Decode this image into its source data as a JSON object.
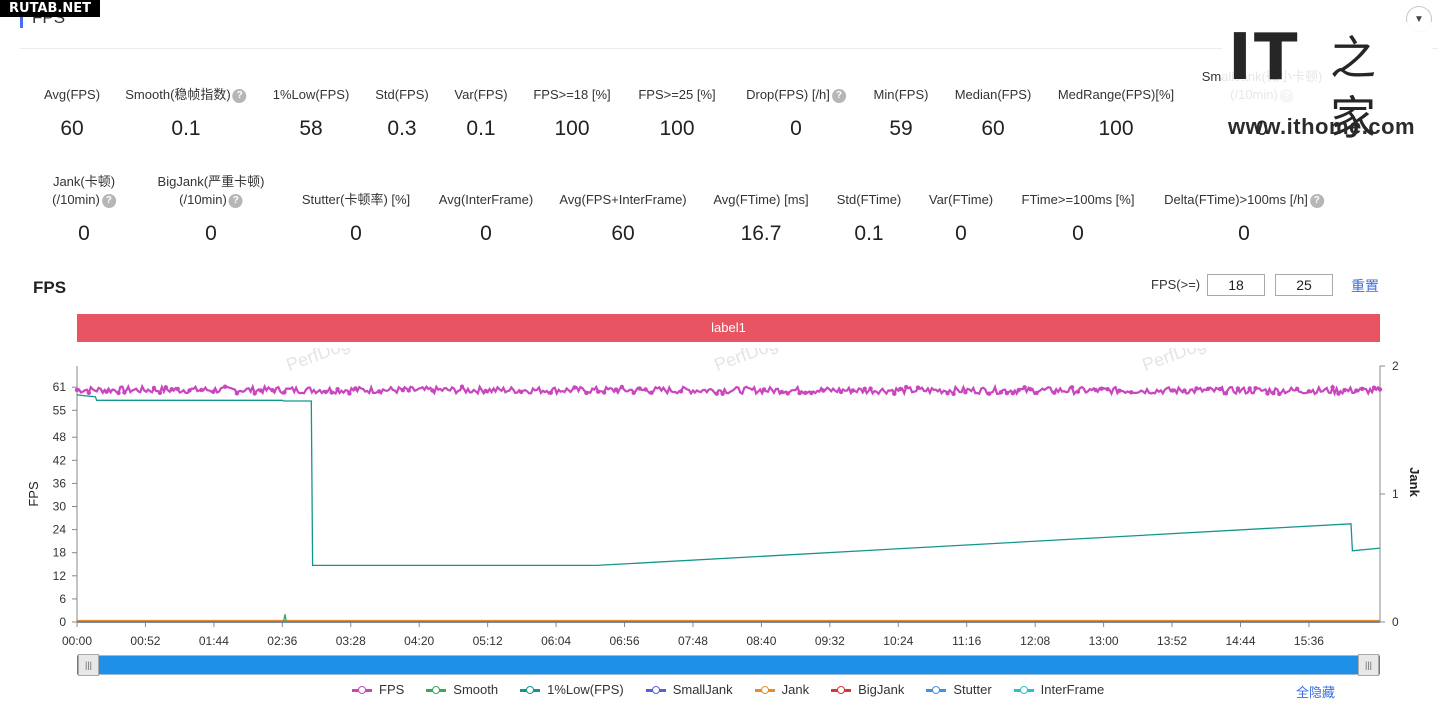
{
  "site_watermark": "RUTAB.NET",
  "section_title": "FPS",
  "logo": {
    "it": "IT",
    "hand": "之家",
    "url": "www.ithome.com"
  },
  "metrics_row1": [
    {
      "label": "Avg(FPS)",
      "value": "60",
      "help": false
    },
    {
      "label": "Smooth(稳帧指数)",
      "value": "0.1",
      "help": true
    },
    {
      "label": "1%Low(FPS)",
      "value": "58",
      "help": false
    },
    {
      "label": "Std(FPS)",
      "value": "0.3",
      "help": false
    },
    {
      "label": "Var(FPS)",
      "value": "0.1",
      "help": false
    },
    {
      "label": "FPS>=18 [%]",
      "value": "100",
      "help": false
    },
    {
      "label": "FPS>=25 [%]",
      "value": "100",
      "help": false
    },
    {
      "label": "Drop(FPS) [/h]",
      "value": "0",
      "help": true
    },
    {
      "label": "Min(FPS)",
      "value": "59",
      "help": false
    },
    {
      "label": "Median(FPS)",
      "value": "60",
      "help": false
    },
    {
      "label": "MedRange(FPS)[%]",
      "value": "100",
      "help": false
    },
    {
      "label": "SmallJank(微小卡顿)",
      "label2": "(/10min)",
      "value": "0",
      "help": true
    }
  ],
  "metrics_row2": [
    {
      "label": "Jank(卡顿)",
      "label2": "(/10min)",
      "value": "0",
      "help": true
    },
    {
      "label": "BigJank(严重卡顿)",
      "label2": "(/10min)",
      "value": "0",
      "help": true
    },
    {
      "label": "Stutter(卡顿率) [%]",
      "value": "0",
      "help": false
    },
    {
      "label": "Avg(InterFrame)",
      "value": "0",
      "help": false
    },
    {
      "label": "Avg(FPS+InterFrame)",
      "value": "60",
      "help": false
    },
    {
      "label": "Avg(FTime) [ms]",
      "value": "16.7",
      "help": false
    },
    {
      "label": "Std(FTime)",
      "value": "0.1",
      "help": false
    },
    {
      "label": "Var(FTime)",
      "value": "0",
      "help": false
    },
    {
      "label": "FTime>=100ms [%]",
      "value": "0",
      "help": false
    },
    {
      "label": "Delta(FTime)>100ms [/h]",
      "value": "0",
      "help": true
    }
  ],
  "chart_header": {
    "title": "FPS",
    "threshold_label": "FPS(>=)",
    "threshold_1": "18",
    "threshold_2": "25",
    "reset": "重置"
  },
  "label_bar": "label1",
  "hide_all": "全隐藏",
  "chart_data": {
    "type": "line",
    "xlabel": "",
    "ylabel": "FPS",
    "y2label": "Jank",
    "ylim": [
      0,
      66.5
    ],
    "y2lim": [
      0,
      2
    ],
    "ytick_labels": [
      "0",
      "6",
      "12",
      "18",
      "24",
      "30",
      "36",
      "42",
      "48",
      "55",
      "61"
    ],
    "y2tick_labels": [
      "0",
      "1",
      "2"
    ],
    "x_tick_labels": [
      "00:00",
      "00:52",
      "01:44",
      "02:36",
      "03:28",
      "04:20",
      "05:12",
      "06:04",
      "06:56",
      "07:48",
      "08:40",
      "09:32",
      "10:24",
      "11:16",
      "12:08",
      "13:00",
      "13:52",
      "14:44",
      "15:36"
    ],
    "x_max_seconds": 990,
    "watermark": "PerfDog",
    "series": [
      {
        "name": "FPS",
        "color": "#c946bf",
        "axis": "left",
        "points": [
          [
            0,
            60.3
          ],
          [
            990,
            60.1
          ]
        ],
        "noisy": true,
        "noise": 0.9
      },
      {
        "name": "Smooth",
        "color": "#3aa858",
        "axis": "left",
        "points": [
          [
            0,
            0.1
          ],
          [
            157,
            0.1
          ],
          [
            158,
            2
          ],
          [
            159,
            0.1
          ],
          [
            990,
            0.1
          ]
        ]
      },
      {
        "name": "1%Low(FPS)",
        "color": "#13968c",
        "axis": "left",
        "points": [
          [
            0,
            59
          ],
          [
            14,
            58.5
          ],
          [
            15,
            57.6
          ],
          [
            156,
            57.6
          ],
          [
            157,
            57.4
          ],
          [
            178,
            57.4
          ],
          [
            179,
            14.7
          ],
          [
            395,
            14.7
          ],
          [
            968,
            25.5
          ],
          [
            969,
            18.5
          ],
          [
            990,
            19.2
          ]
        ]
      },
      {
        "name": "SmallJank",
        "color": "#5b5fd6",
        "axis": "right",
        "points": [
          [
            0,
            0
          ],
          [
            990,
            0
          ]
        ]
      },
      {
        "name": "Jank",
        "color": "#e88a2e",
        "axis": "right",
        "points": [
          [
            0,
            0.012
          ],
          [
            990,
            0.012
          ]
        ]
      },
      {
        "name": "BigJank",
        "color": "#d93636",
        "axis": "right",
        "points": [
          [
            0,
            0
          ],
          [
            990,
            0
          ]
        ]
      },
      {
        "name": "Stutter",
        "color": "#4a90d9",
        "axis": "right",
        "points": [
          [
            0,
            0
          ],
          [
            990,
            0
          ]
        ]
      },
      {
        "name": "InterFrame",
        "color": "#2bc4c4",
        "axis": "left",
        "points": [
          [
            0,
            0
          ],
          [
            990,
            0
          ]
        ]
      }
    ]
  }
}
